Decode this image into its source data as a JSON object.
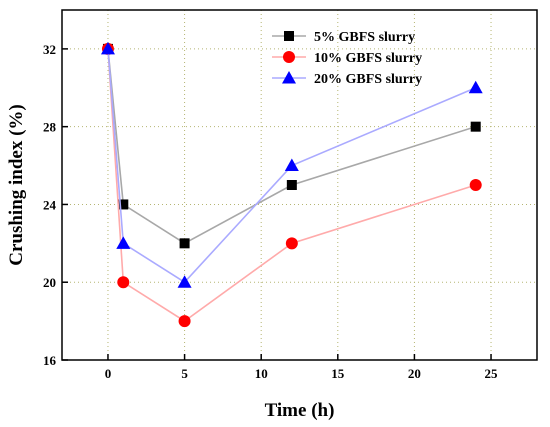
{
  "chart_data": {
    "type": "line",
    "xlabel": "Time (h)",
    "ylabel": "Crushing index (%)",
    "xlim": [
      -3,
      28
    ],
    "ylim": [
      16,
      34
    ],
    "xticks": [
      0,
      5,
      10,
      15,
      20,
      25
    ],
    "yticks": [
      16,
      20,
      24,
      28,
      32
    ],
    "grid": true,
    "legend_position": "top-right",
    "series": [
      {
        "name": "5%   GBFS slurry",
        "marker": "square",
        "marker_color": "#000000",
        "line_color": "#a8a8a8",
        "points": [
          {
            "x": 0,
            "y": 32
          },
          {
            "x": 1,
            "y": 24
          },
          {
            "x": 5,
            "y": 22
          },
          {
            "x": 12,
            "y": 25
          },
          {
            "x": 24,
            "y": 28
          }
        ]
      },
      {
        "name": "10% GBFS slurry",
        "marker": "circle",
        "marker_color": "#ff0000",
        "line_color": "#ffaaaa",
        "points": [
          {
            "x": 0,
            "y": 32
          },
          {
            "x": 1,
            "y": 20
          },
          {
            "x": 5,
            "y": 18
          },
          {
            "x": 12,
            "y": 22
          },
          {
            "x": 24,
            "y": 25
          }
        ]
      },
      {
        "name": "20% GBFS slurry",
        "marker": "triangle",
        "marker_color": "#0000ff",
        "line_color": "#aaaaff",
        "points": [
          {
            "x": 0,
            "y": 32
          },
          {
            "x": 1,
            "y": 22
          },
          {
            "x": 5,
            "y": 20
          },
          {
            "x": 12,
            "y": 26
          },
          {
            "x": 24,
            "y": 30
          }
        ]
      }
    ]
  }
}
